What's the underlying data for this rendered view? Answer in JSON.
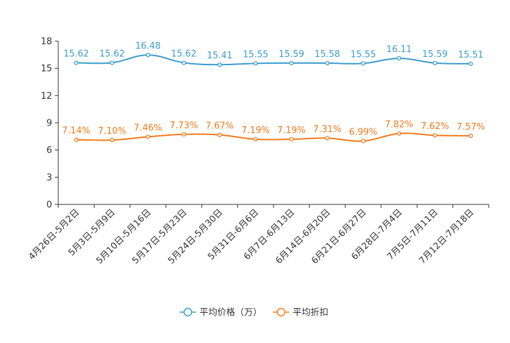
{
  "chart_data": {
    "type": "line",
    "title": "",
    "xlabel": "",
    "ylabel": "",
    "ylim": [
      0,
      18
    ],
    "yticks": [
      0,
      3,
      6,
      9,
      12,
      15,
      18
    ],
    "grid": false,
    "legend_position": "bottom-center",
    "categories": [
      "4月26日-5月2日",
      "5月3日-5月9日",
      "5月10日-5月16日",
      "5月17日-5月23日",
      "5月24日-5月30日",
      "5月31日-6月6日",
      "6月7日-6月13日",
      "6月14日-6月20日",
      "6月21日-6月27日",
      "6月28日-7月4日",
      "7月5日-7月11日",
      "7月12日-7月18日"
    ],
    "series": [
      {
        "name": "平均价格（万）",
        "color": "#3a9ccf",
        "values": [
          15.62,
          15.62,
          16.48,
          15.62,
          15.41,
          15.55,
          15.59,
          15.58,
          15.55,
          16.11,
          15.59,
          15.51
        ],
        "labels": [
          "15.62",
          "15.62",
          "16.48",
          "15.62",
          "15.41",
          "15.55",
          "15.59",
          "15.58",
          "15.55",
          "16.11",
          "15.59",
          "15.51"
        ]
      },
      {
        "name": "平均折扣",
        "color": "#f27a1a",
        "values": [
          7.14,
          7.1,
          7.46,
          7.73,
          7.67,
          7.19,
          7.19,
          7.31,
          6.99,
          7.82,
          7.62,
          7.57
        ],
        "labels": [
          "7.14%",
          "7.10%",
          "7.46%",
          "7.73%",
          "7.67%",
          "7.19%",
          "7.19%",
          "7.31%",
          "6.99%",
          "7.82%",
          "7.62%",
          "7.57%"
        ]
      }
    ]
  }
}
